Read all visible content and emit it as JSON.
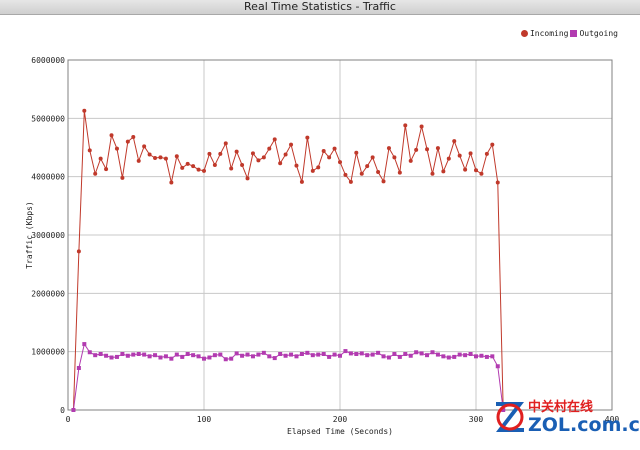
{
  "window": {
    "title": "Real Time Statistics - Traffic"
  },
  "legend": {
    "incoming_label": "Incoming",
    "outgoing_label": "Outgoing"
  },
  "colors": {
    "incoming": "#c0392b",
    "outgoing": "#b23bb0"
  },
  "watermark": {
    "cn": "中关村在线",
    "en": "ZOL.com.cn"
  },
  "chart_data": {
    "type": "line",
    "xlabel": "Elapsed Time (Seconds)",
    "ylabel": "Traffic (Kbps)",
    "xlim": [
      0,
      400
    ],
    "ylim": [
      0,
      6000000
    ],
    "x_ticks": [
      0,
      100,
      200,
      300,
      400
    ],
    "y_ticks": [
      0,
      1000000,
      2000000,
      3000000,
      4000000,
      5000000,
      6000000
    ],
    "x_tick_labels": [
      "0",
      "100",
      "200",
      "300",
      "400"
    ],
    "y_tick_labels": [
      "0",
      "1000000",
      "2000000",
      "3000000",
      "4000000",
      "5000000",
      "6000000"
    ],
    "grid": true,
    "legend_position": "top-right",
    "series": [
      {
        "name": "Incoming",
        "marker": "circle",
        "x": [
          4,
          8,
          12,
          16,
          20,
          24,
          28,
          32,
          36,
          40,
          44,
          48,
          52,
          56,
          60,
          64,
          68,
          72,
          76,
          80,
          84,
          88,
          92,
          96,
          100,
          104,
          108,
          112,
          116,
          120,
          124,
          128,
          132,
          136,
          140,
          144,
          148,
          152,
          156,
          160,
          164,
          168,
          172,
          176,
          180,
          184,
          188,
          192,
          196,
          200,
          204,
          208,
          212,
          216,
          220,
          224,
          228,
          232,
          236,
          240,
          244,
          248,
          252,
          256,
          260,
          264,
          268,
          272,
          276,
          280,
          284,
          288,
          292,
          296,
          300,
          304,
          308,
          312,
          316,
          320
        ],
        "y": [
          0,
          2720000,
          5130000,
          4450000,
          4050000,
          4310000,
          4130000,
          4710000,
          4480000,
          3980000,
          4600000,
          4680000,
          4270000,
          4520000,
          4380000,
          4320000,
          4330000,
          4310000,
          3900000,
          4350000,
          4150000,
          4220000,
          4180000,
          4120000,
          4100000,
          4390000,
          4200000,
          4390000,
          4570000,
          4140000,
          4430000,
          4200000,
          3970000,
          4400000,
          4280000,
          4330000,
          4480000,
          4640000,
          4230000,
          4380000,
          4550000,
          4190000,
          3910000,
          4670000,
          4100000,
          4160000,
          4440000,
          4330000,
          4480000,
          4250000,
          4030000,
          3910000,
          4410000,
          4050000,
          4180000,
          4330000,
          4080000,
          3920000,
          4490000,
          4330000,
          4070000,
          4880000,
          4270000,
          4460000,
          4860000,
          4470000,
          4050000,
          4490000,
          4090000,
          4310000,
          4610000,
          4360000,
          4120000,
          4400000,
          4110000,
          4050000,
          4390000,
          4550000,
          3900000,
          0
        ]
      },
      {
        "name": "Outgoing",
        "marker": "square",
        "x": [
          4,
          8,
          12,
          16,
          20,
          24,
          28,
          32,
          36,
          40,
          44,
          48,
          52,
          56,
          60,
          64,
          68,
          72,
          76,
          80,
          84,
          88,
          92,
          96,
          100,
          104,
          108,
          112,
          116,
          120,
          124,
          128,
          132,
          136,
          140,
          144,
          148,
          152,
          156,
          160,
          164,
          168,
          172,
          176,
          180,
          184,
          188,
          192,
          196,
          200,
          204,
          208,
          212,
          216,
          220,
          224,
          228,
          232,
          236,
          240,
          244,
          248,
          252,
          256,
          260,
          264,
          268,
          272,
          276,
          280,
          284,
          288,
          292,
          296,
          300,
          304,
          308,
          312,
          316,
          320
        ],
        "y": [
          0,
          720000,
          1130000,
          990000,
          940000,
          960000,
          930000,
          900000,
          910000,
          960000,
          930000,
          950000,
          960000,
          950000,
          920000,
          940000,
          900000,
          920000,
          880000,
          950000,
          910000,
          960000,
          940000,
          920000,
          880000,
          900000,
          940000,
          950000,
          870000,
          880000,
          970000,
          930000,
          950000,
          920000,
          950000,
          980000,
          920000,
          890000,
          960000,
          930000,
          950000,
          920000,
          960000,
          980000,
          940000,
          950000,
          960000,
          910000,
          950000,
          930000,
          1010000,
          970000,
          960000,
          970000,
          940000,
          950000,
          980000,
          920000,
          900000,
          960000,
          910000,
          960000,
          930000,
          990000,
          970000,
          940000,
          990000,
          950000,
          920000,
          900000,
          910000,
          950000,
          940000,
          960000,
          920000,
          930000,
          910000,
          920000,
          750000,
          0
        ]
      }
    ]
  }
}
